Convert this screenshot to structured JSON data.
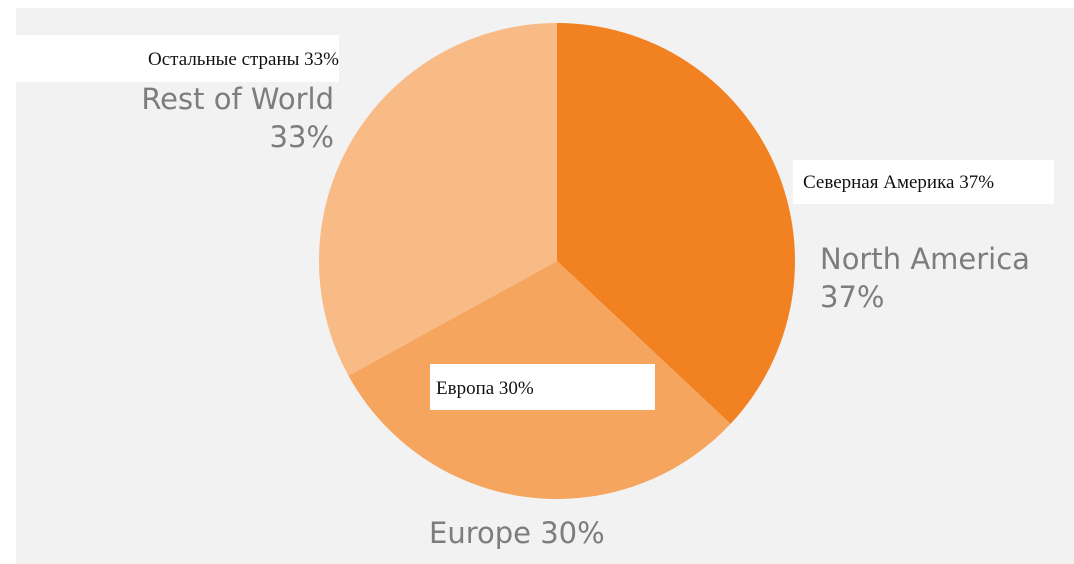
{
  "chart_data": {
    "type": "pie",
    "start_angle_deg": 0,
    "direction": "clockwise",
    "slices": [
      {
        "key": "north_america",
        "value": 37,
        "color": "#f28121"
      },
      {
        "key": "europe",
        "value": 30,
        "color": "#f5a55e"
      },
      {
        "key": "rest_of_world",
        "value": 33,
        "color": "#f9bb85"
      }
    ],
    "labels_en": {
      "north_america": {
        "line1": "North America",
        "line2": "37%"
      },
      "europe": {
        "line1": "Europe 30%"
      },
      "rest_of_world": {
        "line1": "Rest of World",
        "line2": "33%"
      }
    },
    "labels_ru": {
      "rest_of_world": "Остальные страны 33%",
      "north_america": "Северная Америка 37%",
      "europe": "Европа 30%"
    }
  },
  "colors": {
    "panel_background": "#f2f2f2",
    "label_gray": "#7d7d7d",
    "overlay_background": "#ffffff"
  }
}
